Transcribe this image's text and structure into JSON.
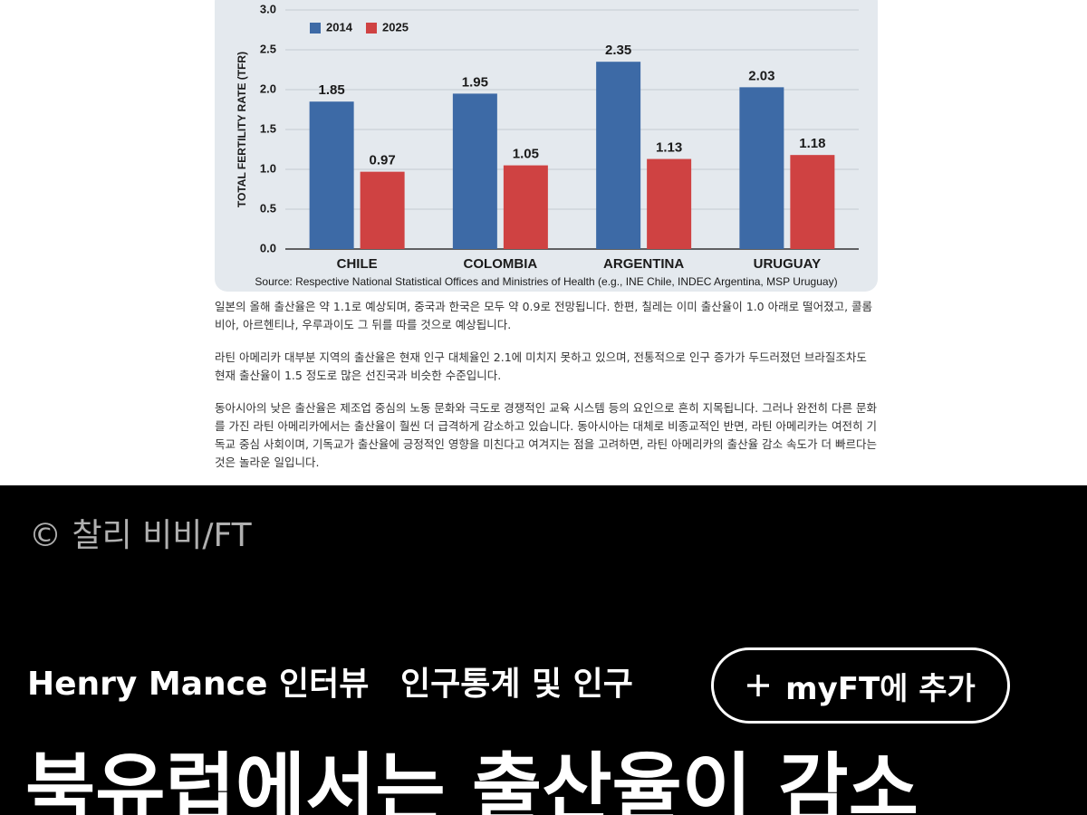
{
  "chart_data": {
    "type": "bar",
    "y_label": "TOTAL FERTILITY RATE (TFR)",
    "categories": [
      "CHILE",
      "COLOMBIA",
      "ARGENTINA",
      "URUGUAY"
    ],
    "series": [
      {
        "name": "2014",
        "color": "#3d6aa6",
        "values": [
          1.85,
          1.95,
          2.35,
          2.03
        ]
      },
      {
        "name": "2025",
        "color": "#cf4242",
        "values": [
          0.97,
          1.05,
          1.13,
          1.18
        ]
      }
    ],
    "ylim": [
      0,
      3
    ],
    "yticks": [
      {
        "value": 0,
        "label": "0.0"
      },
      {
        "value": 0.5,
        "label": "0.5"
      },
      {
        "value": 1,
        "label": "1.0"
      },
      {
        "value": 1.5,
        "label": "1.5"
      },
      {
        "value": 2,
        "label": "2.0"
      },
      {
        "value": 2.5,
        "label": "2.5"
      },
      {
        "value": 3,
        "label": "3.0"
      }
    ],
    "grid": true,
    "legend": "top-left",
    "source": "Source: Respective National Statistical Offices and Ministries of Health (e.g., INE Chile, INDEC Argentina, MSP Uruguay)"
  },
  "article": {
    "paragraphs": [
      "일본의 올해 출산율은 약 1.1로 예상되며, 중국과 한국은 모두 약 0.9로 전망됩니다. 한편, 칠레는 이미 출산율이 1.0 아래로 떨어졌고, 콜롬비아, 아르헨티나, 우루과이도 그 뒤를 따를 것으로 예상됩니다.",
      "라틴 아메리카 대부분 지역의 출산율은 현재 인구 대체율인 2.1에 미치지 못하고 있으며, 전통적으로 인구 증가가 두드러졌던 브라질조차도 현재 출산율이 1.5 정도로 많은 선진국과 비슷한 수준입니다.",
      "동아시아의 낮은 출산율은 제조업 중심의 노동 문화와 극도로 경쟁적인 교육 시스템 등의 요인으로 흔히 지목됩니다. 그러나 완전히 다른 문화를 가진 라틴 아메리카에서는 출산율이 훨씬 더 급격하게 감소하고 있습니다. 동아시아는 대체로 비종교적인 반면, 라틴 아메리카는 여전히 기독교 중심 사회이며, 기독교가 출산율에 긍정적인 영향을 미친다고 여겨지는 점을 고려하면, 라틴 아메리카의 출산율 감소 속도가 더 빠르다는 것은 놀라운 일입니다."
    ]
  },
  "video": {
    "credit": "© 찰리 비비/FT",
    "author": "Henry Mance 인터뷰",
    "topic": "인구통계 및 인구",
    "button": "myFT에 추가",
    "headline": "북유럽에서는 출산율이 감소"
  }
}
